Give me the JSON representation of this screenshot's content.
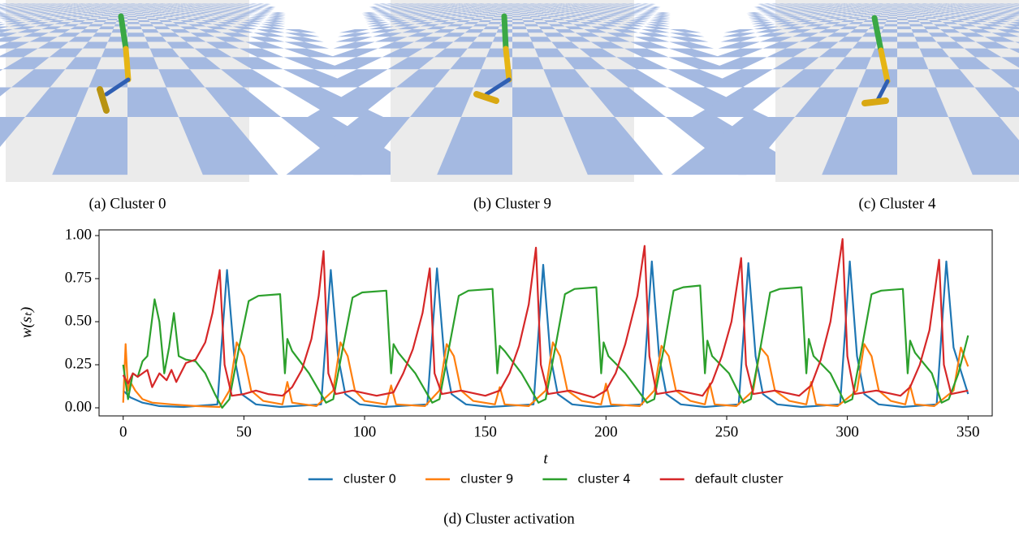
{
  "figures": [
    {
      "caption": "(a) Cluster 0"
    },
    {
      "caption": "(b) Cluster 9"
    },
    {
      "caption": "(c) Cluster 4"
    }
  ],
  "chart_data": {
    "type": "line",
    "caption": "(d) Cluster activation",
    "xlabel": "t",
    "ylabel": "w(sₜ)",
    "xlim": [
      -10,
      360
    ],
    "ylim": [
      -0.047,
      1.033
    ],
    "xticks": [
      0,
      50,
      100,
      150,
      200,
      250,
      300,
      350
    ],
    "yticks": [
      {
        "value": 0,
        "label": "0.00"
      },
      {
        "value": 0.25,
        "label": "0.25"
      },
      {
        "value": 0.5,
        "label": "0.50"
      },
      {
        "value": 0.75,
        "label": "0.75"
      },
      {
        "value": 1,
        "label": "1.00"
      }
    ],
    "legend": "bottom",
    "series": [
      {
        "name": "cluster 0",
        "color": "#1f77b4",
        "x": [
          0,
          3,
          8,
          15,
          25,
          39,
          43,
          46,
          49,
          55,
          65,
          82,
          86,
          89,
          92,
          98,
          108,
          126,
          130,
          133,
          136,
          142,
          152,
          170,
          174,
          177,
          180,
          186,
          196,
          215,
          219,
          222,
          225,
          231,
          241,
          255,
          259,
          262,
          265,
          271,
          281,
          297,
          301,
          304,
          307,
          313,
          323,
          337,
          341,
          344,
          350
        ],
        "values": [
          0.1,
          0.06,
          0.03,
          0.01,
          0.005,
          0.02,
          0.8,
          0.3,
          0.08,
          0.02,
          0.005,
          0.02,
          0.8,
          0.3,
          0.08,
          0.02,
          0.005,
          0.02,
          0.81,
          0.3,
          0.08,
          0.02,
          0.005,
          0.02,
          0.83,
          0.3,
          0.08,
          0.02,
          0.005,
          0.02,
          0.85,
          0.3,
          0.08,
          0.02,
          0.005,
          0.02,
          0.84,
          0.3,
          0.08,
          0.02,
          0.005,
          0.02,
          0.85,
          0.3,
          0.08,
          0.02,
          0.005,
          0.02,
          0.85,
          0.35,
          0.08
        ]
      },
      {
        "name": "cluster 9",
        "color": "#ff7f0e",
        "x": [
          0,
          1,
          2,
          3,
          5,
          8,
          12,
          20,
          30,
          40,
          44,
          47,
          50,
          53,
          58,
          66,
          68,
          70,
          80,
          87,
          90,
          93,
          96,
          100,
          109,
          111,
          113,
          125,
          131,
          134,
          137,
          140,
          145,
          154,
          156,
          158,
          168,
          175,
          178,
          181,
          184,
          190,
          198,
          200,
          202,
          214,
          220,
          223,
          226,
          229,
          235,
          241,
          243,
          245,
          254,
          261,
          264,
          267,
          270,
          276,
          283,
          285,
          287,
          296,
          304,
          307,
          310,
          313,
          318,
          324,
          326,
          328,
          336,
          344,
          347,
          350
        ],
        "values": [
          0.03,
          0.37,
          0.1,
          0.15,
          0.1,
          0.05,
          0.03,
          0.02,
          0.01,
          0.005,
          0.1,
          0.38,
          0.3,
          0.1,
          0.04,
          0.02,
          0.15,
          0.03,
          0.01,
          0.1,
          0.38,
          0.3,
          0.1,
          0.04,
          0.02,
          0.13,
          0.02,
          0.01,
          0.1,
          0.37,
          0.3,
          0.1,
          0.04,
          0.02,
          0.12,
          0.02,
          0.01,
          0.1,
          0.38,
          0.3,
          0.1,
          0.04,
          0.02,
          0.14,
          0.02,
          0.01,
          0.1,
          0.36,
          0.3,
          0.1,
          0.04,
          0.02,
          0.14,
          0.02,
          0.01,
          0.1,
          0.35,
          0.3,
          0.1,
          0.04,
          0.02,
          0.15,
          0.02,
          0.01,
          0.1,
          0.37,
          0.3,
          0.1,
          0.04,
          0.02,
          0.13,
          0.02,
          0.01,
          0.1,
          0.35,
          0.24
        ]
      },
      {
        "name": "cluster 4",
        "color": "#2ca02c",
        "x": [
          0,
          2,
          4,
          6,
          8,
          10,
          13,
          15,
          17,
          19,
          21,
          23,
          26,
          30,
          34,
          38,
          41,
          44,
          48,
          52,
          56,
          65,
          67,
          68,
          70,
          77,
          84,
          87,
          91,
          95,
          99,
          109,
          111,
          112,
          114,
          121,
          128,
          131,
          135,
          139,
          143,
          153,
          155,
          156,
          158,
          165,
          172,
          175,
          179,
          183,
          187,
          196,
          198,
          199,
          201,
          208,
          217,
          220,
          224,
          228,
          232,
          239,
          241,
          242,
          244,
          251,
          257,
          260,
          264,
          268,
          272,
          281,
          283,
          284,
          286,
          293,
          299,
          302,
          306,
          310,
          314,
          323,
          325,
          326,
          328,
          335,
          339,
          342,
          346,
          350
        ],
        "values": [
          0.25,
          0.05,
          0.2,
          0.18,
          0.27,
          0.3,
          0.63,
          0.5,
          0.2,
          0.35,
          0.55,
          0.3,
          0.28,
          0.27,
          0.2,
          0.08,
          0.0,
          0.05,
          0.35,
          0.62,
          0.65,
          0.66,
          0.2,
          0.4,
          0.33,
          0.2,
          0.03,
          0.05,
          0.35,
          0.64,
          0.67,
          0.68,
          0.2,
          0.37,
          0.32,
          0.2,
          0.03,
          0.05,
          0.35,
          0.65,
          0.68,
          0.69,
          0.2,
          0.36,
          0.33,
          0.2,
          0.03,
          0.05,
          0.35,
          0.66,
          0.69,
          0.7,
          0.2,
          0.38,
          0.3,
          0.2,
          0.03,
          0.05,
          0.35,
          0.68,
          0.7,
          0.71,
          0.2,
          0.39,
          0.3,
          0.2,
          0.03,
          0.05,
          0.35,
          0.67,
          0.69,
          0.7,
          0.2,
          0.4,
          0.3,
          0.2,
          0.03,
          0.05,
          0.35,
          0.66,
          0.68,
          0.69,
          0.2,
          0.39,
          0.32,
          0.2,
          0.03,
          0.05,
          0.2,
          0.42
        ]
      },
      {
        "name": "default cluster",
        "color": "#d62728",
        "x": [
          0,
          2,
          4,
          6,
          8,
          10,
          12,
          15,
          18,
          20,
          22,
          26,
          30,
          34,
          37,
          40,
          42,
          45,
          50,
          55,
          60,
          66,
          70,
          74,
          78,
          81,
          83,
          85,
          88,
          95,
          105,
          112,
          116,
          120,
          124,
          127,
          129,
          132,
          140,
          150,
          156,
          160,
          164,
          168,
          171,
          173,
          176,
          185,
          195,
          200,
          204,
          208,
          213,
          216,
          218,
          221,
          230,
          240,
          244,
          248,
          252,
          256,
          258,
          261,
          270,
          280,
          285,
          289,
          293,
          298,
          300,
          303,
          312,
          322,
          326,
          330,
          334,
          338,
          340,
          343,
          350
        ],
        "values": [
          0.19,
          0.14,
          0.2,
          0.18,
          0.2,
          0.22,
          0.12,
          0.2,
          0.16,
          0.22,
          0.15,
          0.26,
          0.28,
          0.38,
          0.55,
          0.8,
          0.25,
          0.07,
          0.08,
          0.1,
          0.08,
          0.07,
          0.12,
          0.22,
          0.4,
          0.65,
          0.91,
          0.2,
          0.08,
          0.1,
          0.07,
          0.09,
          0.2,
          0.34,
          0.55,
          0.81,
          0.2,
          0.08,
          0.1,
          0.07,
          0.1,
          0.2,
          0.36,
          0.6,
          0.93,
          0.25,
          0.08,
          0.1,
          0.06,
          0.1,
          0.2,
          0.37,
          0.65,
          0.94,
          0.3,
          0.08,
          0.1,
          0.07,
          0.15,
          0.3,
          0.5,
          0.87,
          0.25,
          0.08,
          0.1,
          0.07,
          0.13,
          0.28,
          0.5,
          0.98,
          0.3,
          0.08,
          0.1,
          0.07,
          0.12,
          0.25,
          0.45,
          0.86,
          0.25,
          0.08,
          0.1
        ]
      }
    ]
  }
}
